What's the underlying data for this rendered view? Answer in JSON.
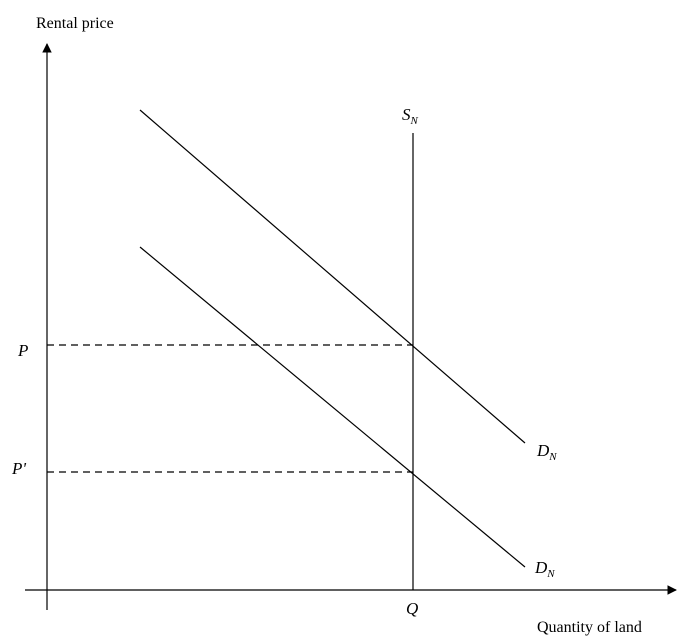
{
  "axes": {
    "y_label": "Rental price",
    "x_label": "Quantity of land"
  },
  "supply": {
    "main": "S",
    "sub": "N"
  },
  "demand_high": {
    "main": "D",
    "sub": "N"
  },
  "demand_low": {
    "main": "D",
    "sub": "N"
  },
  "prices": {
    "high": "P",
    "low": "P'"
  },
  "quantity": "Q"
}
